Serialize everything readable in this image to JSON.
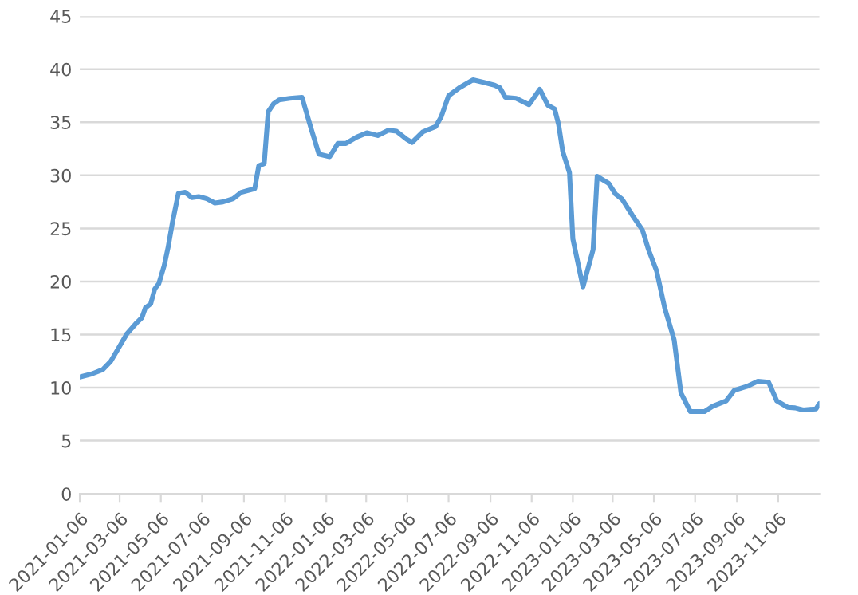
{
  "chart_data": {
    "type": "line",
    "x": [
      "2021-01-06",
      "2021-01-24",
      "2021-02-09",
      "2021-02-21",
      "2021-03-05",
      "2021-03-17",
      "2021-03-31",
      "2021-04-08",
      "2021-04-13",
      "2021-04-21",
      "2021-04-27",
      "2021-05-03",
      "2021-05-11",
      "2021-05-17",
      "2021-05-23",
      "2021-06-01",
      "2021-06-11",
      "2021-06-21",
      "2021-07-01",
      "2021-07-13",
      "2021-07-25",
      "2021-08-06",
      "2021-08-21",
      "2021-09-02",
      "2021-09-22",
      "2021-09-28",
      "2021-10-06",
      "2021-10-12",
      "2021-10-20",
      "2021-10-28",
      "2021-11-13",
      "2021-12-01",
      "2021-12-14",
      "2021-12-26",
      "2022-01-11",
      "2022-01-23",
      "2022-02-04",
      "2022-02-20",
      "2022-03-07",
      "2022-03-23",
      "2022-04-08",
      "2022-04-20",
      "2022-05-05",
      "2022-05-13",
      "2022-05-29",
      "2022-06-17",
      "2022-06-25",
      "2022-07-06",
      "2022-07-22",
      "2022-08-11",
      "2022-08-27",
      "2022-09-12",
      "2022-09-20",
      "2022-09-28",
      "2022-10-14",
      "2022-11-02",
      "2022-11-18",
      "2022-11-30",
      "2022-12-10",
      "2022-12-16",
      "2022-12-22",
      "2023-01-01",
      "2023-01-06",
      "2023-01-21",
      "2023-02-05",
      "2023-02-11",
      "2023-02-28",
      "2023-03-10",
      "2023-03-20",
      "2023-04-04",
      "2023-04-19",
      "2023-04-28",
      "2023-05-10",
      "2023-05-22",
      "2023-06-05",
      "2023-06-15",
      "2023-06-29",
      "2023-07-20",
      "2023-08-01",
      "2023-08-21",
      "2023-09-02",
      "2023-09-22",
      "2023-10-07",
      "2023-10-23",
      "2023-11-04",
      "2023-11-20",
      "2023-12-01",
      "2023-12-13",
      "2024-01-01",
      "2024-01-06"
    ],
    "series": [
      {
        "color": "#5b9bd5",
        "values": [
          11.0,
          11.3,
          11.7,
          12.5,
          13.8,
          15.1,
          16.1,
          16.6,
          17.5,
          17.9,
          19.3,
          19.8,
          21.5,
          23.3,
          25.5,
          28.3,
          28.4,
          27.9,
          28.0,
          27.8,
          27.4,
          27.5,
          27.8,
          28.4,
          28.75,
          30.9,
          31.1,
          36.0,
          36.75,
          37.1,
          37.25,
          37.35,
          34.5,
          32.0,
          31.75,
          33.0,
          33.0,
          33.6,
          34.0,
          33.75,
          34.25,
          34.15,
          33.4,
          33.1,
          34.1,
          34.6,
          35.5,
          37.5,
          38.25,
          39.0,
          38.75,
          38.5,
          38.25,
          37.35,
          37.25,
          36.65,
          38.1,
          36.6,
          36.25,
          34.75,
          32.25,
          30.25,
          24.0,
          19.5,
          23.0,
          29.9,
          29.25,
          28.25,
          27.75,
          26.25,
          24.85,
          23.0,
          21.0,
          17.5,
          14.5,
          9.5,
          7.75,
          7.75,
          8.25,
          8.75,
          9.75,
          10.15,
          10.6,
          10.5,
          8.75,
          8.15,
          8.1,
          7.9,
          8.0,
          8.5
        ]
      }
    ],
    "xlim": [
      "2021-01-06",
      "2024-01-06"
    ],
    "xticks": [
      "2021-01-06",
      "2021-03-06",
      "2021-05-06",
      "2021-07-06",
      "2021-09-06",
      "2021-11-06",
      "2022-01-06",
      "2022-03-06",
      "2022-05-06",
      "2022-07-06",
      "2022-09-06",
      "2022-11-06",
      "2023-01-06",
      "2023-03-06",
      "2023-05-06",
      "2023-07-06",
      "2023-09-06",
      "2023-11-06"
    ],
    "ylim": [
      0,
      45
    ],
    "yticks": [
      0,
      5,
      10,
      15,
      20,
      25,
      30,
      35,
      40,
      45
    ],
    "grid": "y",
    "legend": false,
    "marker": "none",
    "line_style": "solid"
  }
}
